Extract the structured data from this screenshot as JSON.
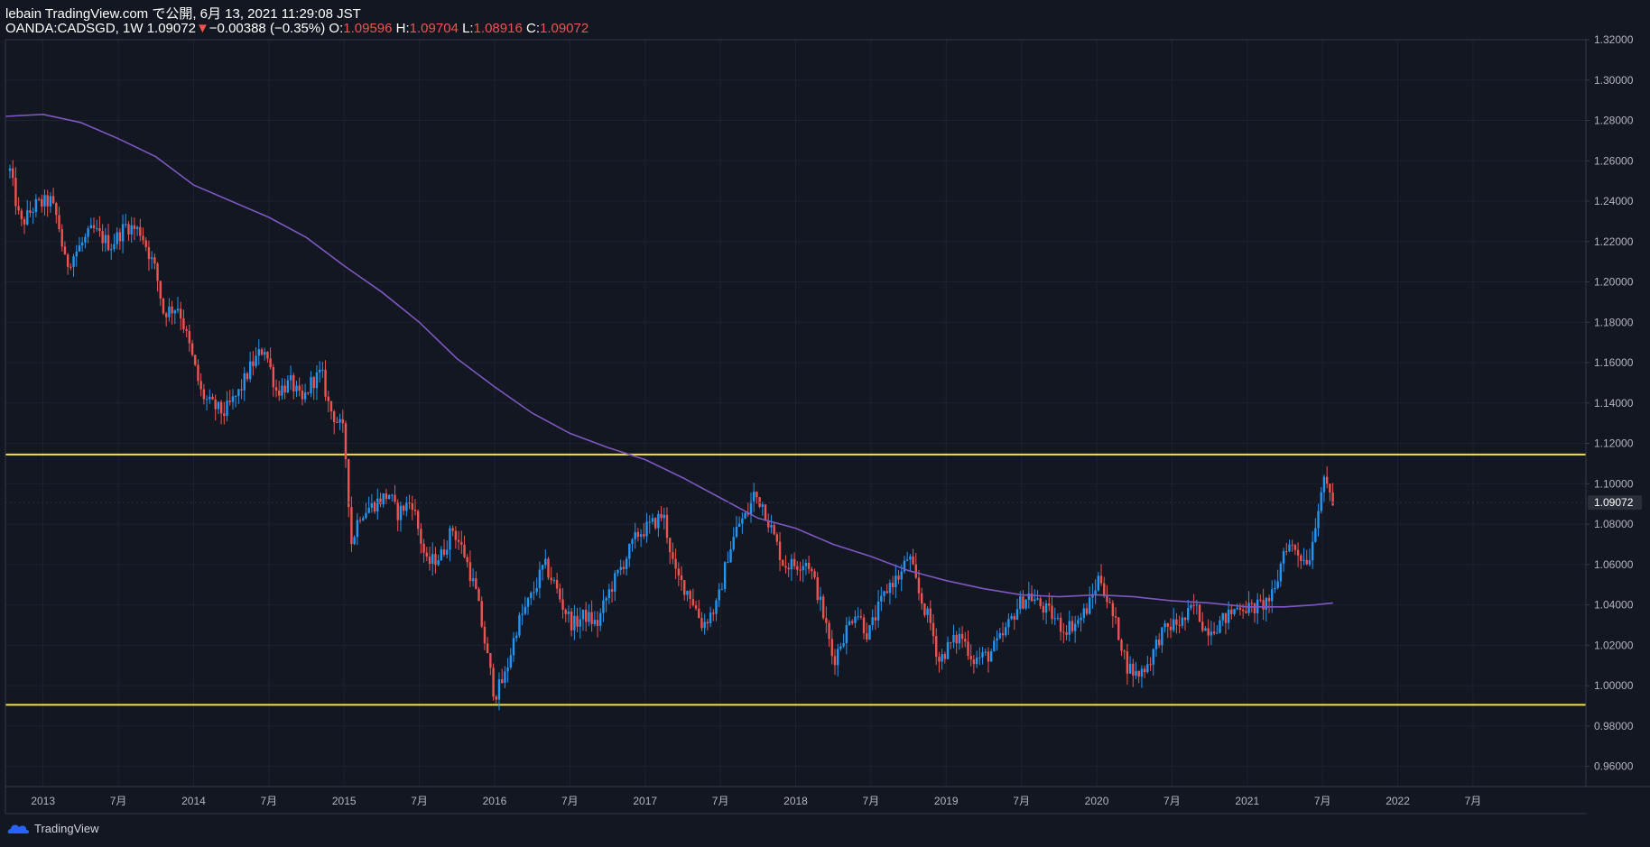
{
  "header": {
    "line1": "lebain TradingView.com で公開, 6月 13, 2021 11:29:08 JST",
    "symbol": "OANDA:CADSGD, 1W",
    "last": "1.09072",
    "change": "−0.00388 (−0.35%)",
    "o_label": "O:",
    "o": "1.09596",
    "h_label": "H:",
    "h": "1.09704",
    "l_label": "L:",
    "l": "1.08916",
    "c_label": "C:",
    "c": "1.09072",
    "down_arrow": "▼"
  },
  "brand": {
    "name": "TradingView",
    "icon": "tradingview-logo-icon"
  },
  "colors": {
    "background": "#131722",
    "up": "#2196f3",
    "down": "#ef5350",
    "ma": "#7e57c2",
    "hline": "#f5e23c",
    "axis_text": "#b2b5be",
    "header_red": "#ef5350"
  },
  "chart_data": {
    "type": "candlestick",
    "interval": "1W",
    "symbol": "OANDA:CADSGD",
    "ylim": [
      0.95,
      1.32
    ],
    "y_ticks": [
      "0.96000",
      "0.98000",
      "1.00000",
      "1.02000",
      "1.04000",
      "1.06000",
      "1.08000",
      "1.10000",
      "1.12000",
      "1.14000",
      "1.16000",
      "1.18000",
      "1.20000",
      "1.22000",
      "1.24000",
      "1.26000",
      "1.28000",
      "1.30000",
      "1.32000"
    ],
    "x_ticks": [
      {
        "label": "2013",
        "t": 2013.0
      },
      {
        "label": "7月",
        "t": 2013.5
      },
      {
        "label": "2014",
        "t": 2014.0
      },
      {
        "label": "7月",
        "t": 2014.5
      },
      {
        "label": "2015",
        "t": 2015.0
      },
      {
        "label": "7月",
        "t": 2015.5
      },
      {
        "label": "2016",
        "t": 2016.0
      },
      {
        "label": "7月",
        "t": 2016.5
      },
      {
        "label": "2017",
        "t": 2017.0
      },
      {
        "label": "7月",
        "t": 2017.5
      },
      {
        "label": "2018",
        "t": 2018.0
      },
      {
        "label": "7月",
        "t": 2018.5
      },
      {
        "label": "2019",
        "t": 2019.0
      },
      {
        "label": "7月",
        "t": 2019.5
      },
      {
        "label": "2020",
        "t": 2020.0
      },
      {
        "label": "7月",
        "t": 2020.5
      },
      {
        "label": "2021",
        "t": 2021.0
      },
      {
        "label": "7月",
        "t": 2021.5
      },
      {
        "label": "2022",
        "t": 2022.0
      },
      {
        "label": "7月",
        "t": 2022.5
      }
    ],
    "xlim": [
      2012.75,
      2023.25
    ],
    "last_price": "1.09072",
    "horizontal_lines": [
      1.1145,
      0.9905
    ],
    "price_path": [
      [
        2012.78,
        1.255
      ],
      [
        2012.85,
        1.228
      ],
      [
        2012.95,
        1.238
      ],
      [
        2013.05,
        1.24
      ],
      [
        2013.1,
        1.23
      ],
      [
        2013.15,
        1.208
      ],
      [
        2013.25,
        1.218
      ],
      [
        2013.33,
        1.226
      ],
      [
        2013.45,
        1.218
      ],
      [
        2013.55,
        1.228
      ],
      [
        2013.65,
        1.225
      ],
      [
        2013.75,
        1.205
      ],
      [
        2013.8,
        1.185
      ],
      [
        2013.9,
        1.188
      ],
      [
        2014.0,
        1.16
      ],
      [
        2014.05,
        1.145
      ],
      [
        2014.1,
        1.14
      ],
      [
        2014.2,
        1.135
      ],
      [
        2014.3,
        1.145
      ],
      [
        2014.38,
        1.158
      ],
      [
        2014.47,
        1.168
      ],
      [
        2014.55,
        1.146
      ],
      [
        2014.65,
        1.15
      ],
      [
        2014.72,
        1.14
      ],
      [
        2014.78,
        1.15
      ],
      [
        2014.85,
        1.155
      ],
      [
        2014.9,
        1.138
      ],
      [
        2015.0,
        1.125
      ],
      [
        2015.05,
        1.07
      ],
      [
        2015.1,
        1.085
      ],
      [
        2015.2,
        1.09
      ],
      [
        2015.3,
        1.095
      ],
      [
        2015.35,
        1.085
      ],
      [
        2015.45,
        1.092
      ],
      [
        2015.5,
        1.075
      ],
      [
        2015.55,
        1.06
      ],
      [
        2015.65,
        1.065
      ],
      [
        2015.72,
        1.078
      ],
      [
        2015.8,
        1.065
      ],
      [
        2015.88,
        1.045
      ],
      [
        2015.95,
        1.015
      ],
      [
        2016.0,
        0.995
      ],
      [
        2016.07,
        1.005
      ],
      [
        2016.15,
        1.03
      ],
      [
        2016.25,
        1.045
      ],
      [
        2016.33,
        1.06
      ],
      [
        2016.4,
        1.05
      ],
      [
        2016.45,
        1.04
      ],
      [
        2016.52,
        1.03
      ],
      [
        2016.6,
        1.035
      ],
      [
        2016.68,
        1.03
      ],
      [
        2016.75,
        1.045
      ],
      [
        2016.85,
        1.06
      ],
      [
        2016.95,
        1.075
      ],
      [
        2017.05,
        1.08
      ],
      [
        2017.12,
        1.085
      ],
      [
        2017.2,
        1.055
      ],
      [
        2017.3,
        1.045
      ],
      [
        2017.38,
        1.03
      ],
      [
        2017.48,
        1.04
      ],
      [
        2017.55,
        1.065
      ],
      [
        2017.62,
        1.08
      ],
      [
        2017.68,
        1.085
      ],
      [
        2017.72,
        1.095
      ],
      [
        2017.78,
        1.09
      ],
      [
        2017.85,
        1.075
      ],
      [
        2017.92,
        1.06
      ],
      [
        2018.0,
        1.06
      ],
      [
        2018.08,
        1.062
      ],
      [
        2018.15,
        1.045
      ],
      [
        2018.2,
        1.03
      ],
      [
        2018.25,
        1.012
      ],
      [
        2018.32,
        1.025
      ],
      [
        2018.4,
        1.038
      ],
      [
        2018.48,
        1.025
      ],
      [
        2018.55,
        1.038
      ],
      [
        2018.62,
        1.05
      ],
      [
        2018.7,
        1.055
      ],
      [
        2018.75,
        1.065
      ],
      [
        2018.82,
        1.045
      ],
      [
        2018.9,
        1.03
      ],
      [
        2018.95,
        1.012
      ],
      [
        2019.02,
        1.02
      ],
      [
        2019.1,
        1.025
      ],
      [
        2019.18,
        1.013
      ],
      [
        2019.28,
        1.015
      ],
      [
        2019.38,
        1.025
      ],
      [
        2019.48,
        1.04
      ],
      [
        2019.55,
        1.045
      ],
      [
        2019.62,
        1.04
      ],
      [
        2019.7,
        1.035
      ],
      [
        2019.78,
        1.028
      ],
      [
        2019.88,
        1.032
      ],
      [
        2019.95,
        1.04
      ],
      [
        2020.02,
        1.055
      ],
      [
        2020.08,
        1.04
      ],
      [
        2020.15,
        1.025
      ],
      [
        2020.2,
        1.01
      ],
      [
        2020.27,
        1.005
      ],
      [
        2020.35,
        1.012
      ],
      [
        2020.42,
        1.025
      ],
      [
        2020.5,
        1.03
      ],
      [
        2020.58,
        1.032
      ],
      [
        2020.65,
        1.04
      ],
      [
        2020.72,
        1.028
      ],
      [
        2020.8,
        1.03
      ],
      [
        2020.88,
        1.035
      ],
      [
        2020.95,
        1.04
      ],
      [
        2021.02,
        1.038
      ],
      [
        2021.1,
        1.04
      ],
      [
        2021.18,
        1.045
      ],
      [
        2021.25,
        1.07
      ],
      [
        2021.32,
        1.068
      ],
      [
        2021.38,
        1.062
      ],
      [
        2021.42,
        1.065
      ],
      [
        2021.46,
        1.085
      ],
      [
        2021.5,
        1.1
      ],
      [
        2021.54,
        1.098
      ],
      [
        2021.57,
        1.091
      ]
    ],
    "ma_path": [
      [
        2012.75,
        1.282
      ],
      [
        2013.0,
        1.283
      ],
      [
        2013.25,
        1.279
      ],
      [
        2013.5,
        1.271
      ],
      [
        2013.75,
        1.262
      ],
      [
        2014.0,
        1.248
      ],
      [
        2014.25,
        1.24
      ],
      [
        2014.5,
        1.232
      ],
      [
        2014.75,
        1.222
      ],
      [
        2015.0,
        1.208
      ],
      [
        2015.25,
        1.195
      ],
      [
        2015.5,
        1.18
      ],
      [
        2015.75,
        1.162
      ],
      [
        2016.0,
        1.148
      ],
      [
        2016.25,
        1.135
      ],
      [
        2016.5,
        1.125
      ],
      [
        2016.75,
        1.118
      ],
      [
        2017.0,
        1.112
      ],
      [
        2017.25,
        1.103
      ],
      [
        2017.5,
        1.093
      ],
      [
        2017.75,
        1.083
      ],
      [
        2018.0,
        1.078
      ],
      [
        2018.25,
        1.07
      ],
      [
        2018.5,
        1.064
      ],
      [
        2018.75,
        1.057
      ],
      [
        2019.0,
        1.052
      ],
      [
        2019.25,
        1.048
      ],
      [
        2019.5,
        1.045
      ],
      [
        2019.75,
        1.044
      ],
      [
        2020.0,
        1.045
      ],
      [
        2020.25,
        1.044
      ],
      [
        2020.5,
        1.042
      ],
      [
        2020.75,
        1.041
      ],
      [
        2021.0,
        1.039
      ],
      [
        2021.25,
        1.039
      ],
      [
        2021.45,
        1.04
      ],
      [
        2021.57,
        1.041
      ]
    ]
  }
}
